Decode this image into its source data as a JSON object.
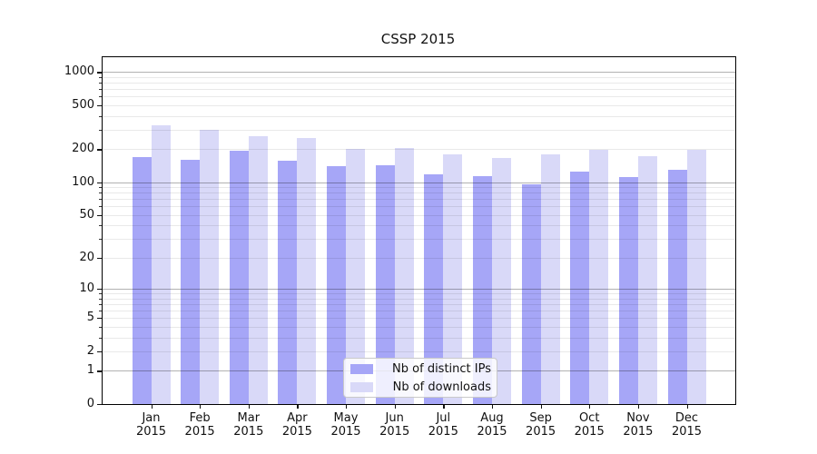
{
  "chart_data": {
    "type": "bar",
    "title": "CSSP 2015",
    "categories": [
      "Jan 2015",
      "Feb 2015",
      "Mar 2015",
      "Apr 2015",
      "May 2015",
      "Jun 2015",
      "Jul 2015",
      "Aug 2015",
      "Sep 2015",
      "Oct 2015",
      "Nov 2015",
      "Dec 2015"
    ],
    "series": [
      {
        "name": "Nb of distinct IPs",
        "slug": "distinct-ips",
        "color": "#a6a6f7",
        "values": [
          170,
          160,
          192,
          157,
          139,
          143,
          118,
          114,
          96,
          125,
          112,
          130
        ]
      },
      {
        "name": "Nb of downloads",
        "slug": "downloads",
        "color": "#d9d9f8",
        "values": [
          330,
          300,
          265,
          255,
          200,
          207,
          178,
          167,
          181,
          197,
          172,
          197
        ]
      }
    ],
    "xlabel": "",
    "ylabel": "",
    "yscale": "log1p",
    "ylim": [
      0,
      1361
    ],
    "yticks": [
      0,
      1,
      2,
      5,
      10,
      20,
      50,
      100,
      200,
      500,
      1000
    ],
    "grid_major": [
      1,
      10,
      100,
      1000
    ],
    "grid_minor": [
      2,
      3,
      4,
      5,
      6,
      7,
      8,
      9,
      20,
      30,
      40,
      50,
      60,
      70,
      80,
      90,
      200,
      300,
      400,
      500,
      600,
      700,
      800,
      900
    ],
    "grid": "on",
    "legend_position": "bottom-center",
    "frame_color": "#000000",
    "background_color": "#ffffff"
  }
}
